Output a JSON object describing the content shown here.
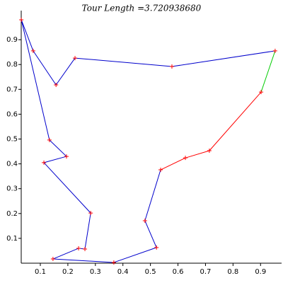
{
  "chart_data": {
    "type": "tour",
    "title": "Tour Length =3.720938680",
    "x": [
      0.031,
      0.074,
      0.157,
      0.226,
      0.578,
      0.953,
      0.902,
      0.714,
      0.627,
      0.537,
      0.48,
      0.522,
      0.367,
      0.146,
      0.239,
      0.262,
      0.283,
      0.113,
      0.195,
      0.133
    ],
    "y": [
      0.98,
      0.855,
      0.718,
      0.826,
      0.792,
      0.855,
      0.689,
      0.453,
      0.424,
      0.376,
      0.171,
      0.063,
      0.003,
      0.017,
      0.06,
      0.057,
      0.202,
      0.405,
      0.43,
      0.496
    ],
    "closed": true,
    "segment_colors": [
      "#0000cc",
      "#0000cc",
      "#0000cc",
      "#0000cc",
      "#0000cc",
      "#00cc00",
      "#ff0000",
      "#ff0000",
      "#ff0000",
      "#0000cc",
      "#0000cc",
      "#0000cc",
      "#0000cc",
      "#0000cc",
      "#0000cc",
      "#0000cc",
      "#0000cc",
      "#0000cc",
      "#0000cc",
      "#0000cc"
    ],
    "point_color": "#ff0000",
    "xlim": [
      0.0306,
      0.961
    ],
    "ylim": [
      0,
      1.0
    ],
    "xticks": [
      0.1,
      0.2,
      0.3,
      0.4,
      0.5,
      0.6,
      0.7,
      0.8,
      0.9
    ],
    "yticks": [
      0.1,
      0.2,
      0.3,
      0.4,
      0.5,
      0.6,
      0.7,
      0.8,
      0.9
    ]
  }
}
